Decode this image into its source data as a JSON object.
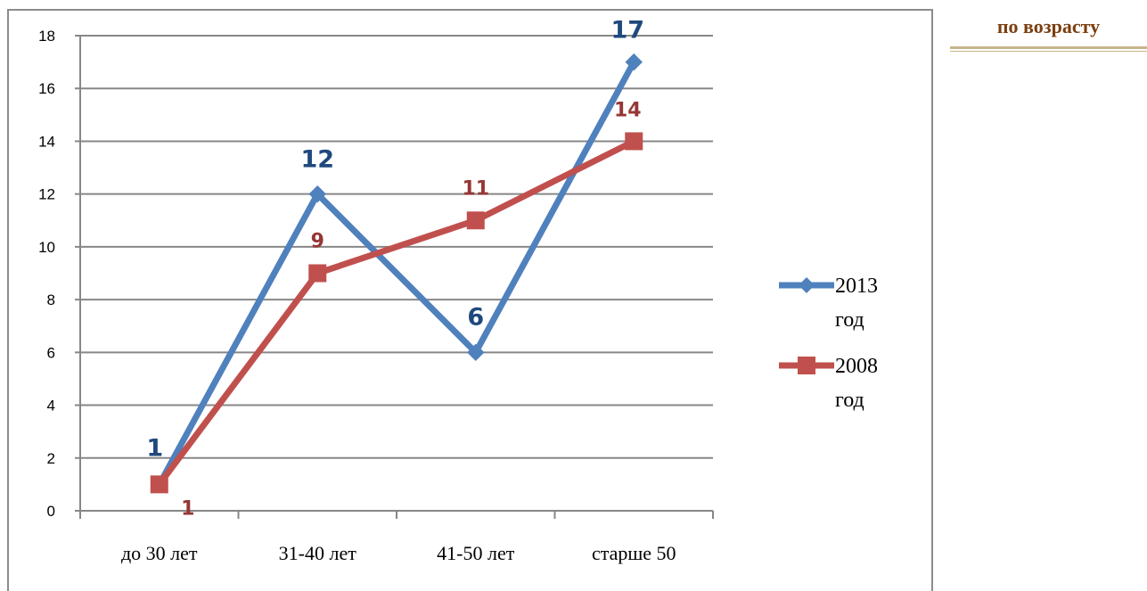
{
  "side_heading": "по возрасту",
  "chart_data": {
    "type": "line",
    "categories": [
      "до 30 лет",
      "31-40 лет",
      "41-50 лет",
      "старше 50"
    ],
    "series": [
      {
        "name_line1": "2013",
        "name_line2": "год",
        "color": "#4f81bd",
        "label_color": "#1f497d",
        "marker": "diamond",
        "values": [
          1,
          12,
          6,
          17
        ]
      },
      {
        "name_line1": "2008",
        "name_line2": "год",
        "color": "#c0504d",
        "label_color": "#953735",
        "marker": "square",
        "values": [
          1,
          9,
          11,
          14
        ]
      }
    ],
    "ylim": [
      0,
      18
    ],
    "yticks": [
      0,
      2,
      4,
      6,
      8,
      10,
      12,
      14,
      16,
      18
    ],
    "grid": true,
    "legend": "right"
  }
}
